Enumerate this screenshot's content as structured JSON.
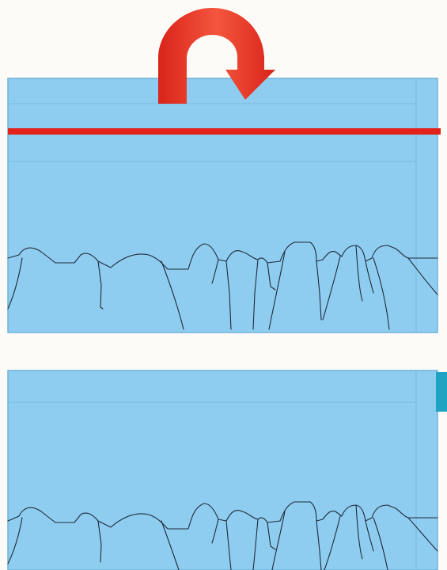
{
  "colors": {
    "background": "#fdfbf7",
    "slab_fill": "#8fcdf0",
    "slab_edge": "#6fb2da",
    "guide_line": "#7ab9e0",
    "outline": "#1e2a3a",
    "cut_line": "#e2231a",
    "arrow": "#d9241b",
    "arrow_highlight": "#f4553d",
    "marker": "#1fa3c2"
  },
  "icons": {
    "flip_arrow": "curved-u-turn-arrow-icon",
    "edge_marker": "teal-edge-marker"
  }
}
